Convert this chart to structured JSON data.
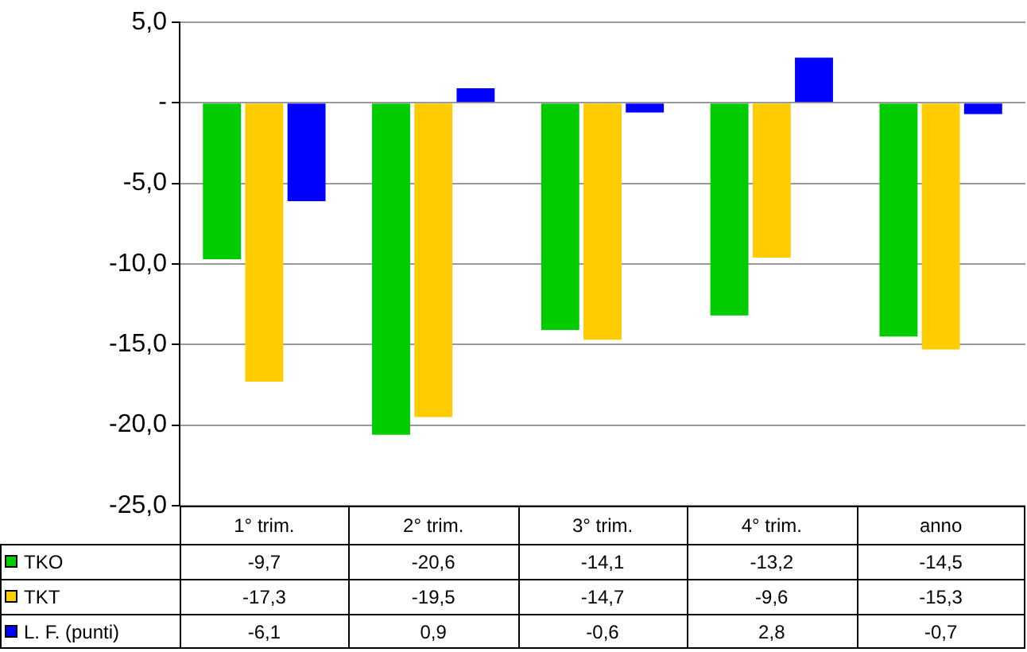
{
  "chart_data": {
    "type": "bar",
    "categories": [
      "1° trim.",
      "2° trim.",
      "3° trim.",
      "4° trim.",
      "anno"
    ],
    "series": [
      {
        "name": "TKO",
        "color": "#00cc00",
        "values": [
          -9.7,
          -20.6,
          -14.1,
          -13.2,
          -14.5
        ],
        "value_labels": [
          "-9,7",
          "-20,6",
          "-14,1",
          "-13,2",
          "-14,5"
        ]
      },
      {
        "name": "TKT",
        "color": "#ffcc00",
        "values": [
          -17.3,
          -19.5,
          -14.7,
          -9.6,
          -15.3
        ],
        "value_labels": [
          "-17,3",
          "-19,5",
          "-14,7",
          "-9,6",
          "-15,3"
        ]
      },
      {
        "name": "L. F. (punti)",
        "color": "#0000ff",
        "values": [
          -6.1,
          0.9,
          -0.6,
          2.8,
          -0.7
        ],
        "value_labels": [
          "-6,1",
          "0,9",
          "-0,6",
          "2,8",
          "-0,7"
        ]
      }
    ],
    "ylim": [
      -25,
      5
    ],
    "yticks": [
      {
        "value": 5,
        "label": "5,0"
      },
      {
        "value": 0,
        "label": "-"
      },
      {
        "value": -5,
        "label": "-5,0"
      },
      {
        "value": -10,
        "label": "-10,0"
      },
      {
        "value": -15,
        "label": "-15,0"
      },
      {
        "value": -20,
        "label": "-20,0"
      },
      {
        "value": -25,
        "label": "-25,0"
      }
    ],
    "grid": "y",
    "legend": "bottom"
  }
}
